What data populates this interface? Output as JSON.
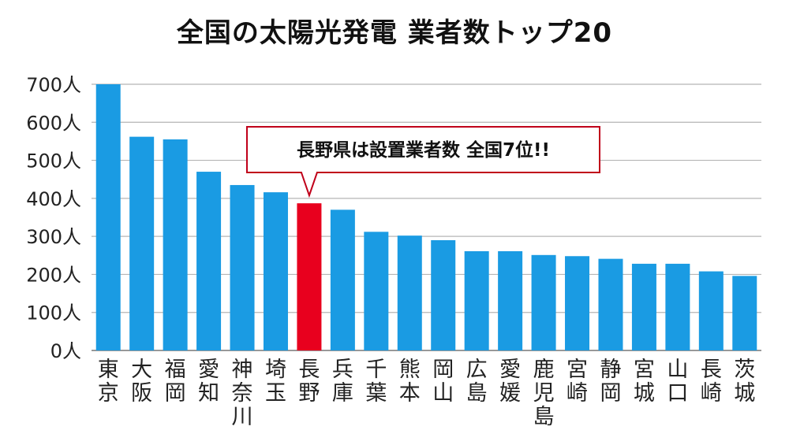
{
  "chart_data": {
    "type": "bar",
    "title": "全国の太陽光発電 業者数トップ20",
    "y_unit": "人",
    "ylim": [
      0,
      700
    ],
    "yticks": [
      0,
      100,
      200,
      300,
      400,
      500,
      600,
      700
    ],
    "categories": [
      "東京",
      "大阪",
      "福岡",
      "愛知",
      "神奈川",
      "埼玉",
      "長野",
      "兵庫",
      "千葉",
      "熊本",
      "岡山",
      "広島",
      "愛媛",
      "鹿児島",
      "宮崎",
      "静岡",
      "宮城",
      "山口",
      "長崎",
      "茨城"
    ],
    "values": [
      700,
      562,
      555,
      470,
      435,
      416,
      387,
      370,
      312,
      302,
      290,
      261,
      261,
      251,
      248,
      241,
      228,
      228,
      208,
      196
    ],
    "highlight_index": 6,
    "colors": {
      "bar": "#1a9be3",
      "highlight": "#e8001e",
      "grid": "#b5b5b5",
      "axis": "#999999",
      "callout_border": "#c0001a"
    },
    "annotation": {
      "text": "長野県は設置業者数 全国7位!!",
      "target_index": 6
    }
  }
}
